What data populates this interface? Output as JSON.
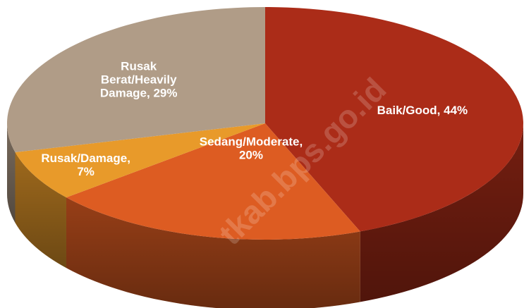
{
  "chart_data": {
    "type": "pie",
    "title": "",
    "slices": [
      {
        "label_lines": [
          "Baik/Good, 44%"
        ],
        "category": "Baik/Good",
        "value": 44,
        "color": "#ab2c18"
      },
      {
        "label_lines": [
          "Sedang/Moderate,",
          "20%"
        ],
        "category": "Sedang/Moderate",
        "value": 20,
        "color": "#dd5c22"
      },
      {
        "label_lines": [
          "Rusak/Damage,",
          "7%"
        ],
        "category": "Rusak/Damage",
        "value": 7,
        "color": "#e89a2a"
      },
      {
        "label_lines": [
          "Rusak",
          "Berat/Heavily",
          "Damage, 29%"
        ],
        "category": "Rusak Berat/Heavily Damage",
        "value": 29,
        "color": "#b09c87"
      }
    ]
  },
  "watermark": "tkab.bps.go.id"
}
